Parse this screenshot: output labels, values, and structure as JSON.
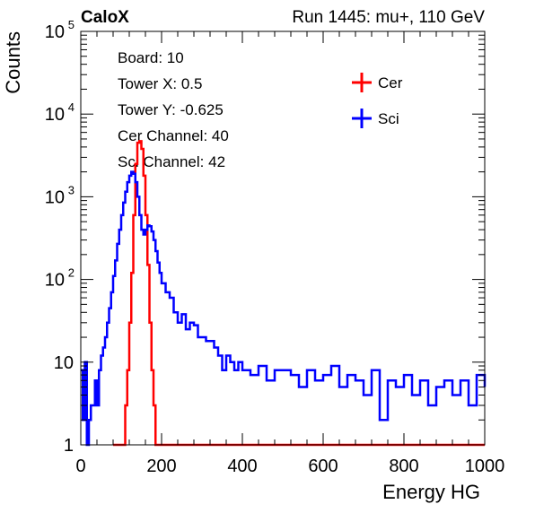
{
  "header": {
    "experiment": "CaloX",
    "run_info": "Run 1445: mu+, 110 GeV"
  },
  "info_box": {
    "lines": [
      "Board: 10",
      "Tower X: 0.5",
      "Tower Y: -0.625",
      "Cer Channel: 40",
      "Sci Channel: 42"
    ]
  },
  "colors": {
    "cer": "#ff0000",
    "sci": "#0000ff",
    "axis": "#000000"
  },
  "chart_data": {
    "type": "line",
    "xlabel": "Energy HG",
    "ylabel": "Counts",
    "xlim": [
      0,
      1000
    ],
    "ylim": [
      1,
      100000
    ],
    "yscale": "log",
    "grid": false,
    "legend_position": "top-right",
    "x_ticks": [
      "0",
      "200",
      "400",
      "600",
      "800",
      "1000"
    ],
    "y_ticks": [
      {
        "base": "1",
        "exp": ""
      },
      {
        "base": "10",
        "exp": ""
      },
      {
        "base": "10",
        "exp": "2"
      },
      {
        "base": "10",
        "exp": "3"
      },
      {
        "base": "10",
        "exp": "4"
      },
      {
        "base": "10",
        "exp": "5"
      }
    ],
    "series": [
      {
        "name": "Cer",
        "color": "#ff0000",
        "x": [
          80,
          85,
          90,
          95,
          100,
          105,
          110,
          115,
          120,
          125,
          130,
          135,
          140,
          145,
          150,
          155,
          160,
          165,
          170,
          175,
          180,
          185,
          190,
          195,
          200,
          1000
        ],
        "y": [
          1,
          1,
          1,
          1,
          1,
          1,
          3,
          8,
          30,
          120,
          600,
          2500,
          4500,
          4700,
          3800,
          1800,
          600,
          150,
          30,
          8,
          3,
          1,
          1,
          1,
          1,
          1
        ]
      },
      {
        "name": "Sci",
        "color": "#0000ff",
        "x": [
          0,
          5,
          10,
          15,
          20,
          25,
          30,
          35,
          40,
          45,
          50,
          55,
          60,
          65,
          70,
          75,
          80,
          85,
          90,
          95,
          100,
          105,
          110,
          115,
          120,
          125,
          130,
          135,
          140,
          145,
          150,
          155,
          160,
          165,
          170,
          175,
          180,
          185,
          190,
          195,
          200,
          210,
          220,
          230,
          240,
          250,
          260,
          270,
          280,
          290,
          300,
          310,
          320,
          330,
          340,
          350,
          360,
          370,
          380,
          390,
          400,
          420,
          440,
          460,
          480,
          500,
          520,
          540,
          560,
          580,
          600,
          620,
          640,
          660,
          680,
          700,
          720,
          740,
          760,
          780,
          800,
          820,
          840,
          860,
          880,
          900,
          920,
          940,
          960,
          980,
          1000
        ],
        "y": [
          8,
          2,
          10,
          1,
          2,
          3,
          3,
          6,
          3,
          8,
          12,
          15,
          20,
          30,
          45,
          70,
          110,
          170,
          270,
          400,
          600,
          850,
          1150,
          1500,
          1800,
          2000,
          1900,
          1500,
          1000,
          600,
          400,
          350,
          400,
          450,
          440,
          380,
          300,
          220,
          160,
          120,
          90,
          70,
          60,
          40,
          30,
          38,
          25,
          30,
          28,
          20,
          20,
          18,
          18,
          15,
          12,
          8,
          12,
          10,
          8,
          10,
          8,
          7,
          9,
          6,
          8,
          8,
          7,
          5,
          8,
          6,
          7,
          9,
          5,
          7,
          6,
          4,
          8,
          2,
          6,
          5,
          7,
          4,
          6,
          3,
          5,
          6,
          4,
          6,
          3,
          7,
          5
        ]
      }
    ]
  }
}
